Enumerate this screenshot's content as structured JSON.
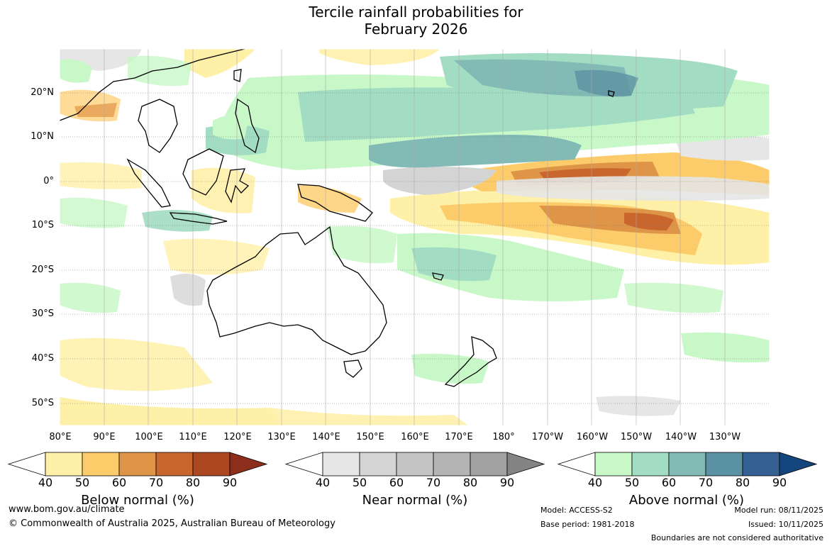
{
  "title": {
    "line1": "Tercile rainfall probabilities for",
    "line2": "February 2026"
  },
  "map": {
    "lon_labels": [
      "80°E",
      "90°E",
      "100°E",
      "110°E",
      "120°E",
      "130°E",
      "140°E",
      "150°E",
      "160°E",
      "170°E",
      "180°",
      "170°W",
      "160°W",
      "150°W",
      "140°W",
      "130°W"
    ],
    "lat_labels": [
      "20°N",
      "10°N",
      "0°",
      "10°S",
      "20°S",
      "30°S",
      "40°S",
      "50°S"
    ]
  },
  "legend": {
    "below": {
      "title": "Below normal (%)",
      "ticks": [
        "40",
        "50",
        "60",
        "70",
        "80",
        "90"
      ],
      "colors": [
        "#fff0a8",
        "#fdcc6a",
        "#df9548",
        "#c9662e",
        "#ac4722",
        "#8c2e1b"
      ]
    },
    "near": {
      "title": "Near normal (%)",
      "ticks": [
        "40",
        "50",
        "60",
        "70",
        "80",
        "90"
      ],
      "colors": [
        "#e6e6e6",
        "#d4d4d4",
        "#c4c4c4",
        "#b4b4b4",
        "#a2a2a2",
        "#848484"
      ]
    },
    "above": {
      "title": "Above normal (%)",
      "ticks": [
        "40",
        "50",
        "60",
        "70",
        "80",
        "90"
      ],
      "colors": [
        "#c8f8c8",
        "#a2dcc2",
        "#82bab5",
        "#5b92a3",
        "#346094",
        "#15457d"
      ]
    }
  },
  "footer": {
    "url": "www.bom.gov.au/climate",
    "copyright": "© Commonwealth of Australia 2025, Australian Bureau of Meteorology",
    "model": "Model: ACCESS-S2",
    "base_period": "Base period: 1981-2018",
    "model_run": "Model run: 08/11/2025",
    "issued": "Issued: 10/11/2025",
    "disclaimer": "Boundaries are not considered authoritative"
  }
}
